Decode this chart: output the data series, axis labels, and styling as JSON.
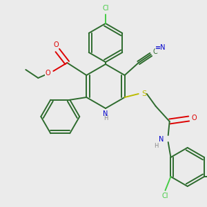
{
  "background_color": "#ebebeb",
  "figsize": [
    3.0,
    3.0
  ],
  "dpi": 100,
  "bond_color": "#2d6b2d",
  "lw": 1.4,
  "colors": {
    "C": "#2d6b2d",
    "N": "#0000cc",
    "O": "#dd0000",
    "S": "#bbbb00",
    "Cl": "#44cc44",
    "H": "#888888"
  },
  "fs": 7.0
}
